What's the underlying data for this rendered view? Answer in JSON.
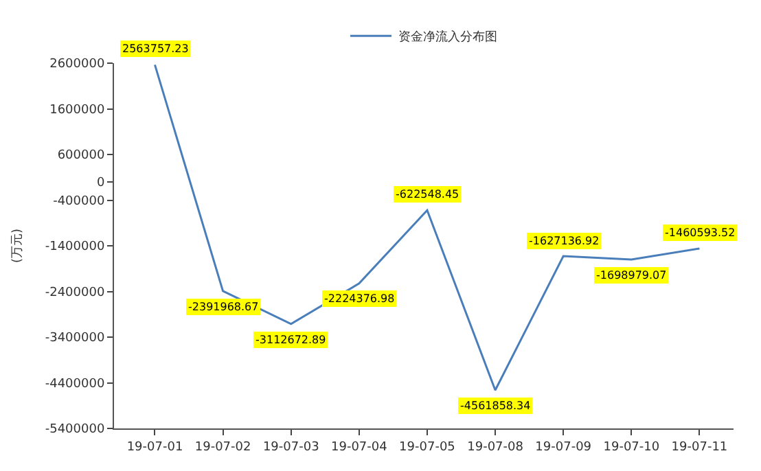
{
  "chart_data": {
    "type": "line",
    "ylabel": "(万元)",
    "categories": [
      "19-07-01",
      "19-07-02",
      "19-07-03",
      "19-07-04",
      "19-07-05",
      "19-07-08",
      "19-07-09",
      "19-07-10",
      "19-07-11"
    ],
    "series": [
      {
        "name": "资金净流入分布图",
        "color": "#4a7ebb",
        "values": [
          2563757.23,
          -2391968.67,
          -3112672.89,
          -2224376.98,
          -622548.45,
          -4561858.34,
          -1627136.92,
          -1698979.07,
          -1460593.52
        ]
      }
    ],
    "ylim": [
      -5400000,
      2600000
    ],
    "yticks": [
      2600000,
      1600000,
      600000,
      0,
      -400000,
      -1400000,
      -2400000,
      -3400000,
      -4400000,
      -5400000
    ],
    "data_labels": true,
    "legend": "top",
    "marker": "none",
    "line_style": "solid"
  }
}
